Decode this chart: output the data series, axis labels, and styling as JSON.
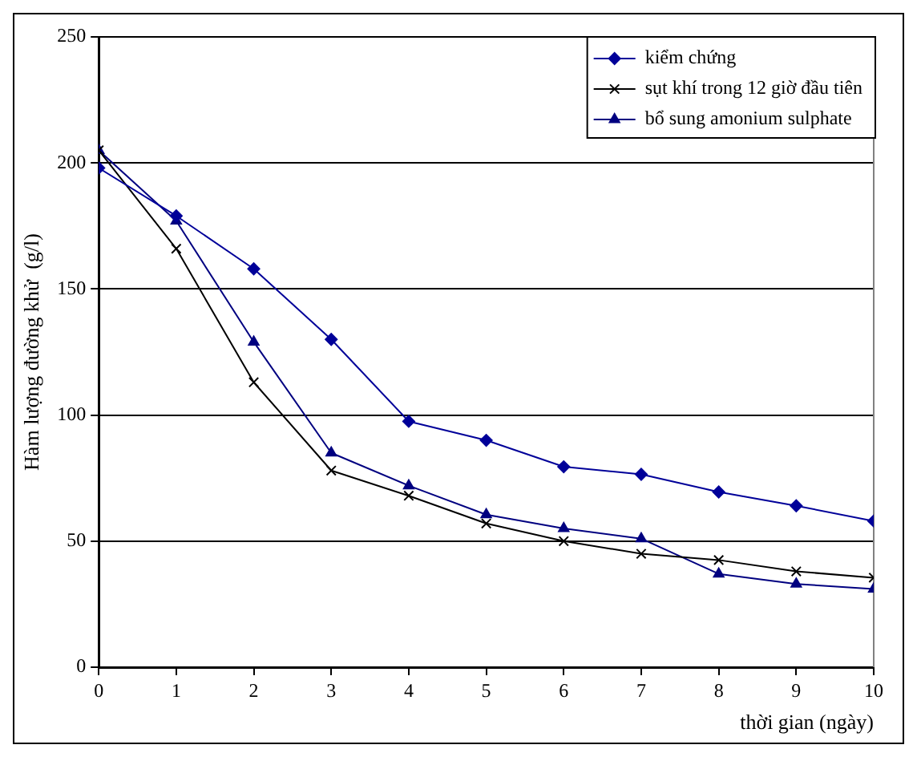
{
  "chart_data": {
    "type": "line",
    "xlabel": "thời gian (ngày)",
    "ylabel": "Hàm lượng đường khử  (g/l)",
    "x": [
      0,
      1,
      2,
      3,
      4,
      5,
      6,
      7,
      8,
      9,
      10
    ],
    "xlim": [
      0,
      10
    ],
    "xticks": [
      0,
      1,
      2,
      3,
      4,
      5,
      6,
      7,
      8,
      9,
      10
    ],
    "ylim": [
      0,
      250
    ],
    "yticks": [
      0,
      50,
      100,
      150,
      200,
      250
    ],
    "grid": "y",
    "legend": "top right",
    "line_style": "solid",
    "series": [
      {
        "name": "kiểm chứng",
        "color": "#000099",
        "marker": "diamond",
        "values": [
          198,
          179,
          158,
          130,
          97.5,
          90,
          79.5,
          76.5,
          69.5,
          64,
          58
        ]
      },
      {
        "name": "sụt khí trong 12 giờ đầu tiên",
        "color": "#000000",
        "marker": "cross",
        "values": [
          205,
          166,
          113,
          78,
          68,
          57,
          50,
          45,
          42.5,
          38,
          35.5
        ]
      },
      {
        "name": "bổ sung amonium sulphate",
        "color": "#000080",
        "marker": "triangle",
        "values": [
          205,
          177,
          129,
          85,
          72,
          60.5,
          55,
          51,
          37,
          33,
          31
        ]
      }
    ]
  }
}
